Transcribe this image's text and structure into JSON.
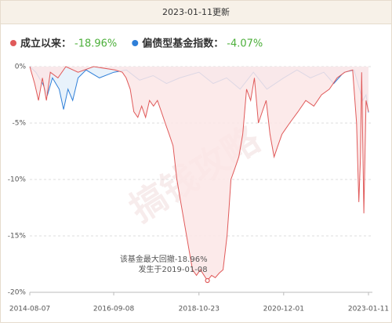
{
  "chart_data": {
    "type": "area-line",
    "title": "2023-01-11更新",
    "watermark": "搞钱攻略",
    "series": [
      {
        "name": "成立以来：",
        "summary": "-18.96%",
        "color": "#e05a5a",
        "fill": "#fbe6e6",
        "x": [
          "2014-08-07",
          "2014-09-20",
          "2014-10-25",
          "2014-11-30",
          "2015-01-05",
          "2015-02-10",
          "2015-04-20",
          "2015-07-01",
          "2015-10-20",
          "2016-03-10",
          "2016-09-20",
          "2016-11-25",
          "2016-12-30",
          "2017-02-05",
          "2017-03-10",
          "2017-04-15",
          "2017-05-20",
          "2017-06-25",
          "2017-07-30",
          "2017-09-05",
          "2017-10-10",
          "2017-11-15",
          "2017-12-20",
          "2018-01-25",
          "2018-03-01",
          "2018-04-05",
          "2018-05-10",
          "2018-06-15",
          "2018-07-20",
          "2018-08-25",
          "2018-09-30",
          "2018-11-05",
          "2019-01-08",
          "2019-02-15",
          "2019-03-20",
          "2019-04-25",
          "2019-05-30",
          "2019-07-05",
          "2019-07-20",
          "2019-08-10",
          "2019-09-15",
          "2019-10-20",
          "2019-11-25",
          "2019-12-30",
          "2020-02-05",
          "2020-03-10",
          "2020-04-15",
          "2020-05-20",
          "2020-06-25",
          "2020-07-30",
          "2020-09-05",
          "2020-10-10",
          "2020-11-15",
          "2020-12-20",
          "2021-01-25",
          "2021-04-10",
          "2021-06-20",
          "2021-09-01",
          "2021-11-10",
          "2022-01-20",
          "2022-04-01",
          "2022-06-10",
          "2022-08-20",
          "2022-09-25",
          "2022-10-15",
          "2022-10-30",
          "2022-11-10",
          "2022-11-30",
          "2022-12-20",
          "2023-01-11"
        ],
        "values": [
          0,
          -1.5,
          -3,
          -1,
          -3,
          -0.5,
          -1,
          0,
          -0.5,
          0,
          -0.3,
          -0.5,
          -1,
          -2,
          -4,
          -4.5,
          -3.5,
          -4.5,
          -3,
          -3.5,
          -3,
          -4,
          -5,
          -6,
          -7,
          -10,
          -12,
          -14,
          -16,
          -18,
          -18.5,
          -18,
          -18.96,
          -18.5,
          -18.7,
          -18.3,
          -18,
          -15,
          -13,
          -10,
          -9,
          -8,
          -6,
          -2,
          -3,
          -1,
          -5,
          -4,
          -3,
          -6,
          -8,
          -7,
          -6,
          -5.5,
          -5,
          -4,
          -3,
          -3.5,
          -2.5,
          -2,
          -1,
          -0.5,
          -0.3,
          -5,
          -12,
          -8,
          -0.5,
          -13,
          -3,
          -4
        ]
      },
      {
        "name": "偏债型基金指数：",
        "summary": "-4.07%",
        "color": "#2f7fd8",
        "fill": "#e4f0fa",
        "x": [
          "2014-08-07",
          "2014-10-01",
          "2014-12-01",
          "2015-01-15",
          "2015-03-01",
          "2015-05-01",
          "2015-06-10",
          "2015-07-20",
          "2015-09-01",
          "2015-10-20",
          "2016-01-01",
          "2016-05-01",
          "2016-09-08",
          "2017-01-01",
          "2017-05-01",
          "2017-09-01",
          "2018-01-01",
          "2018-05-01",
          "2018-10-23",
          "2019-03-01",
          "2019-07-01",
          "2019-11-01",
          "2020-03-01",
          "2020-07-01",
          "2020-12-01",
          "2021-04-01",
          "2021-08-01",
          "2021-12-01",
          "2022-03-01",
          "2022-06-01",
          "2022-09-01",
          "2022-11-20",
          "2022-12-20",
          "2023-01-11"
        ],
        "values": [
          0,
          -0.5,
          -1.5,
          -2.5,
          -1,
          -2,
          -3.8,
          -2,
          -3,
          -1,
          -0.3,
          -1,
          -0.5,
          -0.3,
          -1.2,
          -0.8,
          -1.5,
          -1,
          -0.5,
          -1.5,
          -1,
          -2,
          -0.5,
          -2,
          -1,
          -0.3,
          -1,
          -0.5,
          -1.5,
          -0.5,
          -0.3,
          -3,
          -2.5,
          -4.07
        ]
      }
    ],
    "annotations": [
      "该基金最大回撤-18.96%",
      "发生于2019-01-08"
    ],
    "xlim": [
      "2014-08-07",
      "2023-01-11"
    ],
    "xticks": [
      "2014-08-07",
      "2016-09-08",
      "2018-10-23",
      "2020-12-01",
      "2023-01-11"
    ],
    "ylim": [
      -20,
      0
    ],
    "yticks": [
      {
        "value": 0,
        "label": "0%"
      },
      {
        "value": -5,
        "label": "-5%"
      },
      {
        "value": -10,
        "label": "-10%"
      },
      {
        "value": -15,
        "label": "-15%"
      },
      {
        "value": -20,
        "label": "-20%"
      }
    ],
    "grid": true,
    "summary_color": "#4caf3a"
  }
}
